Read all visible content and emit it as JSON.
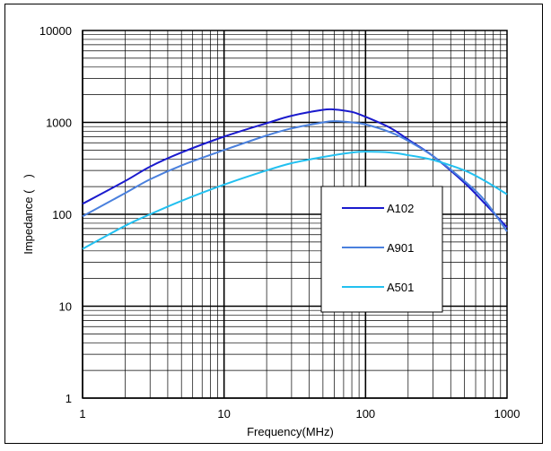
{
  "chart_data": {
    "type": "line",
    "title": "",
    "xlabel": "Frequency(MHz)",
    "ylabel": "Impedance (　)",
    "x_scale": "log",
    "y_scale": "log",
    "xlim": [
      1,
      1000
    ],
    "ylim": [
      1,
      10000
    ],
    "x_ticks": [
      "1",
      "10",
      "100",
      "1000"
    ],
    "y_ticks": [
      "1",
      "10",
      "100",
      "1000",
      "10000"
    ],
    "grid": true,
    "legend_position": "center-right",
    "series": [
      {
        "name": "A102",
        "color": "#1a1acd",
        "points": [
          [
            1,
            130
          ],
          [
            2,
            230
          ],
          [
            3,
            330
          ],
          [
            5,
            470
          ],
          [
            10,
            700
          ],
          [
            20,
            980
          ],
          [
            30,
            1180
          ],
          [
            50,
            1370
          ],
          [
            60,
            1380
          ],
          [
            80,
            1300
          ],
          [
            100,
            1150
          ],
          [
            150,
            870
          ],
          [
            200,
            650
          ],
          [
            300,
            430
          ],
          [
            500,
            220
          ],
          [
            700,
            130
          ],
          [
            1000,
            72
          ]
        ]
      },
      {
        "name": "A901",
        "color": "#4a80dd",
        "points": [
          [
            1,
            95
          ],
          [
            2,
            170
          ],
          [
            3,
            240
          ],
          [
            5,
            340
          ],
          [
            10,
            500
          ],
          [
            20,
            720
          ],
          [
            30,
            860
          ],
          [
            50,
            1000
          ],
          [
            60,
            1030
          ],
          [
            80,
            1000
          ],
          [
            100,
            950
          ],
          [
            150,
            780
          ],
          [
            200,
            630
          ],
          [
            300,
            430
          ],
          [
            500,
            230
          ],
          [
            700,
            140
          ],
          [
            1000,
            65
          ]
        ]
      },
      {
        "name": "A501",
        "color": "#22c0f0",
        "points": [
          [
            1,
            42
          ],
          [
            2,
            75
          ],
          [
            3,
            100
          ],
          [
            5,
            140
          ],
          [
            10,
            210
          ],
          [
            20,
            300
          ],
          [
            30,
            360
          ],
          [
            50,
            420
          ],
          [
            80,
            470
          ],
          [
            100,
            480
          ],
          [
            150,
            470
          ],
          [
            200,
            440
          ],
          [
            300,
            390
          ],
          [
            500,
            300
          ],
          [
            700,
            230
          ],
          [
            1000,
            165
          ]
        ]
      }
    ]
  }
}
